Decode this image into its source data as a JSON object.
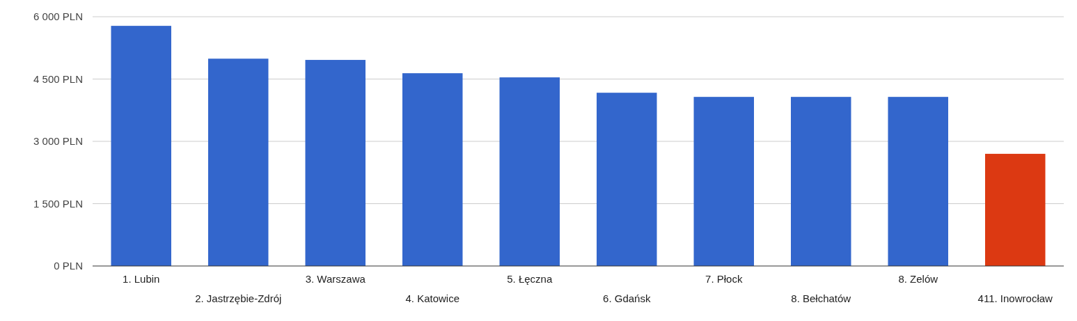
{
  "chart_data": {
    "type": "bar",
    "categories": [
      "1. Lubin",
      "2. Jastrzębie-Zdrój",
      "3. Warszawa",
      "4. Katowice",
      "5. Łęczna",
      "6. Gdańsk",
      "7. Płock",
      "8. Bełchatów",
      "8. Zelów",
      "411. Inowrocław"
    ],
    "values": [
      5780,
      4990,
      4960,
      4640,
      4540,
      4170,
      4070,
      4070,
      4070,
      2700
    ],
    "colors": [
      "#3366cc",
      "#3366cc",
      "#3366cc",
      "#3366cc",
      "#3366cc",
      "#3366cc",
      "#3366cc",
      "#3366cc",
      "#3366cc",
      "#dc3912"
    ],
    "ylim": [
      0,
      6000
    ],
    "yticks": [
      {
        "value": 0,
        "label": "0 PLN"
      },
      {
        "value": 1500,
        "label": "1 500 PLN"
      },
      {
        "value": 3000,
        "label": "3 000 PLN"
      },
      {
        "value": 4500,
        "label": "4 500 PLN"
      },
      {
        "value": 6000,
        "label": "6 000 PLN"
      }
    ],
    "grid": "y"
  }
}
